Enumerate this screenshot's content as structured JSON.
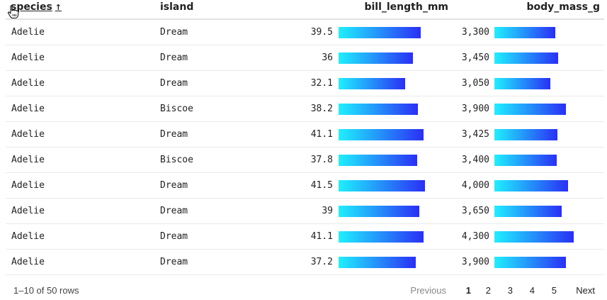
{
  "table": {
    "columns": {
      "species": "species",
      "species_sort": "↑",
      "island": "island",
      "bill_length_mm": "bill_length_mm",
      "body_mass_g": "body_mass_g"
    },
    "rows": [
      {
        "species": "Adelie",
        "island": "Dream",
        "bill_length_mm": "39.5",
        "body_mass_g": "3,300"
      },
      {
        "species": "Adelie",
        "island": "Dream",
        "bill_length_mm": "36",
        "body_mass_g": "3,450"
      },
      {
        "species": "Adelie",
        "island": "Dream",
        "bill_length_mm": "32.1",
        "body_mass_g": "3,050"
      },
      {
        "species": "Adelie",
        "island": "Biscoe",
        "bill_length_mm": "38.2",
        "body_mass_g": "3,900"
      },
      {
        "species": "Adelie",
        "island": "Dream",
        "bill_length_mm": "41.1",
        "body_mass_g": "3,425"
      },
      {
        "species": "Adelie",
        "island": "Biscoe",
        "bill_length_mm": "37.8",
        "body_mass_g": "3,400"
      },
      {
        "species": "Adelie",
        "island": "Dream",
        "bill_length_mm": "41.5",
        "body_mass_g": "4,000"
      },
      {
        "species": "Adelie",
        "island": "Dream",
        "bill_length_mm": "39",
        "body_mass_g": "3,650"
      },
      {
        "species": "Adelie",
        "island": "Dream",
        "bill_length_mm": "41.1",
        "body_mass_g": "4,300"
      },
      {
        "species": "Adelie",
        "island": "Dream",
        "bill_length_mm": "37.2",
        "body_mass_g": "3,900"
      }
    ],
    "bar_colors": {
      "start": "#1ff0ff",
      "end": "#2a2ff5"
    }
  },
  "footer": {
    "row_info": "1–10 of 50 rows",
    "previous": "Previous",
    "pages": [
      "1",
      "2",
      "3",
      "4",
      "5"
    ],
    "next": "Next",
    "current_page": "1"
  },
  "icons": {
    "cursor": "hand-pointer-icon"
  }
}
